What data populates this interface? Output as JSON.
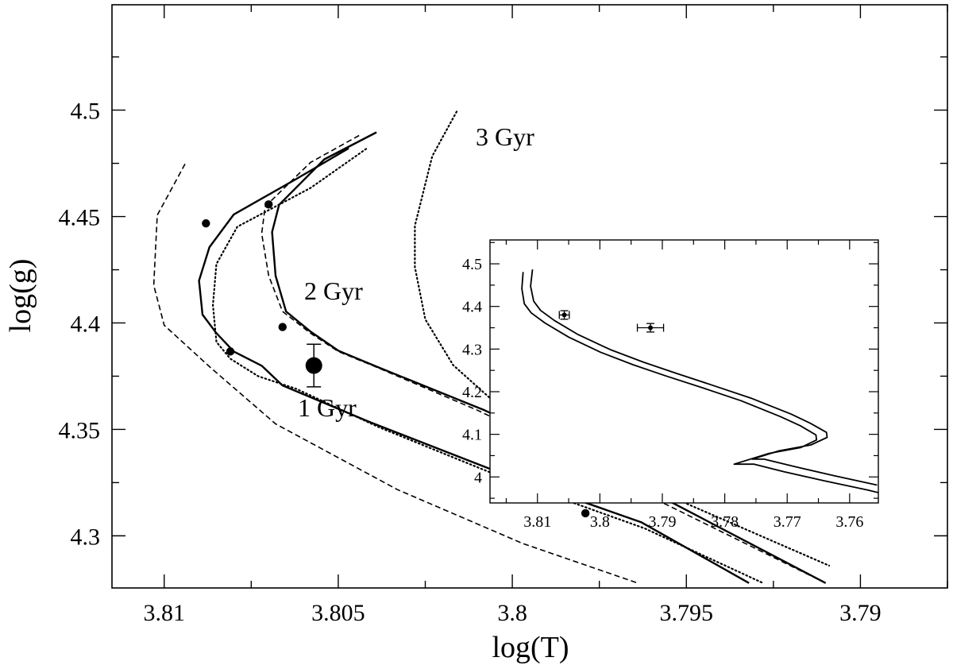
{
  "chart_data": [
    {
      "type": "line",
      "xlabel": "log(T)",
      "ylabel": "log(g)",
      "xlim": [
        3.8115,
        3.7875
      ],
      "ylim": [
        4.5495,
        4.2755
      ],
      "x_reversed": true,
      "y_reversed": true,
      "xticks": [
        3.81,
        3.805,
        3.8,
        3.795,
        3.79
      ],
      "xtick_labels": [
        "3.81",
        "3.805",
        "3.8",
        "3.795",
        "3.79"
      ],
      "yticks": [
        4.3,
        4.35,
        4.4,
        4.45,
        4.5
      ],
      "ytick_labels": [
        "4.3",
        "4.35",
        "4.4",
        "4.45",
        "4.5"
      ],
      "grid": false,
      "series": [
        {
          "style": "solid",
          "x": [
            3.8047,
            3.8062,
            3.808,
            3.8087,
            3.809,
            3.8089,
            3.8085,
            3.808,
            3.8072,
            3.8066,
            3.8041,
            3.8004,
            3.7963,
            3.7932
          ],
          "y": [
            4.4821,
            4.4677,
            4.451,
            4.4356,
            4.4199,
            4.4039,
            4.3952,
            4.3866,
            4.3799,
            4.3706,
            4.3535,
            4.3299,
            4.3064,
            4.2778
          ]
        },
        {
          "style": "solid",
          "x": [
            3.8039,
            3.8054,
            3.8067,
            3.8069,
            3.8068,
            3.8065,
            3.8058,
            3.805,
            3.8039,
            3.8008,
            3.7981,
            3.7957,
            3.791
          ],
          "y": [
            4.4896,
            4.4769,
            4.4555,
            4.4427,
            4.4222,
            4.4054,
            4.396,
            4.387,
            4.3795,
            4.359,
            4.3385,
            4.3181,
            4.2778
          ]
        },
        {
          "style": "dashed",
          "x": [
            3.8094,
            3.8102,
            3.8103,
            3.81,
            3.8087,
            3.8068,
            3.8033,
            3.7997,
            3.7964
          ],
          "y": [
            4.4747,
            4.4506,
            4.4177,
            4.3989,
            4.3795,
            4.3526,
            4.3217,
            4.2964,
            4.2778
          ]
        },
        {
          "style": "dashed",
          "x": [
            3.8044,
            3.8058,
            3.8071,
            3.8072,
            3.807,
            3.8066,
            3.8058,
            3.805,
            3.804,
            3.801,
            3.7983,
            3.7959,
            3.791
          ],
          "y": [
            4.4881,
            4.4754,
            4.4547,
            4.442,
            4.4222,
            4.4054,
            4.3952,
            4.3866,
            4.3799,
            4.359,
            4.3377,
            4.3173,
            4.2778
          ]
        },
        {
          "style": "dotted",
          "x": [
            3.8042,
            3.8058,
            3.8079,
            3.8085,
            3.8086,
            3.8085,
            3.8081,
            3.8073,
            3.8062,
            3.8038,
            3.8002,
            3.7962,
            3.7928
          ],
          "y": [
            4.4818,
            4.4634,
            4.4452,
            4.4277,
            4.4084,
            4.3911,
            4.3832,
            4.375,
            4.369,
            4.3508,
            4.3269,
            4.3035,
            4.2778
          ]
        },
        {
          "style": "dotted",
          "x": [
            3.8016,
            3.8023,
            3.8028,
            3.8028,
            3.8025,
            3.8017,
            3.8006,
            3.7985,
            3.7953,
            3.7909
          ],
          "y": [
            4.4993,
            4.4784,
            4.4457,
            4.4263,
            4.4017,
            4.3802,
            4.3641,
            4.343,
            4.3173,
            4.286
          ]
        }
      ],
      "markers": {
        "x": [
          3.8088,
          3.8081,
          3.807,
          3.8066,
          3.7979,
          3.7972
        ],
        "y": [
          4.4468,
          4.3866,
          4.4557,
          4.3981,
          4.3106,
          4.3236
        ]
      },
      "observations": [
        {
          "x": 3.8057,
          "y": 4.38,
          "yerr": 0.01
        },
        {
          "x": 3.7919,
          "y": 4.35,
          "xerr": 0.0021,
          "yerr": 0.01
        }
      ],
      "annotations": [
        "1 Gyr",
        "2 Gyr",
        "3 Gyr"
      ]
    },
    {
      "type": "line",
      "inset": true,
      "xlim": [
        3.8176,
        3.7554
      ],
      "ylim": [
        4.556,
        3.939
      ],
      "x_reversed": true,
      "y_reversed": true,
      "xticks": [
        3.81,
        3.8,
        3.79,
        3.78,
        3.77,
        3.76
      ],
      "xtick_labels": [
        "3.81",
        "3.8",
        "3.79",
        "3.78",
        "3.77",
        "3.76"
      ],
      "yticks": [
        4.0,
        4.1,
        4.2,
        4.3,
        4.4,
        4.5
      ],
      "ytick_labels": [
        "4",
        "4.1",
        "4.2",
        "4.3",
        "4.4",
        "4.5"
      ],
      "grid": false,
      "series": [
        {
          "style": "solid",
          "x": [
            3.8123,
            3.8125,
            3.8121,
            3.811,
            3.8088,
            3.805,
            3.7999,
            3.7947,
            3.7896,
            3.7834,
            3.7774,
            3.7711,
            3.7679,
            3.7654,
            3.7653,
            3.7678,
            3.7729,
            3.7785,
            3.7753,
            3.7705,
            3.764,
            3.7571,
            3.7554
          ],
          "y": [
            4.4809,
            4.4417,
            4.4064,
            4.3848,
            4.3613,
            4.328,
            4.2927,
            4.2633,
            4.2378,
            4.2084,
            4.1789,
            4.1417,
            4.1201,
            4.0986,
            4.0868,
            4.0692,
            4.0554,
            4.03,
            4.03,
            4.0123,
            3.9907,
            3.9692,
            3.9633
          ]
        },
        {
          "style": "solid",
          "x": [
            3.8108,
            3.8111,
            3.8106,
            3.8095,
            3.8073,
            3.8035,
            3.7983,
            3.793,
            3.7879,
            3.7818,
            3.7758,
            3.7694,
            3.7663,
            3.7637,
            3.7636,
            3.7662,
            3.7713,
            3.7756,
            3.7737,
            3.7688,
            3.7624,
            3.7556
          ],
          "y": [
            4.4868,
            4.4476,
            4.4123,
            4.3907,
            4.3672,
            4.3339,
            4.2986,
            4.2692,
            4.2437,
            4.2143,
            4.1848,
            4.1476,
            4.126,
            4.1045,
            4.0927,
            4.0751,
            4.0613,
            4.0417,
            4.0417,
            4.0241,
            4.0025,
            3.981
          ]
        }
      ],
      "observations": [
        {
          "x": 3.8057,
          "y": 4.38,
          "xerr": 0.0008,
          "yerr": 0.01
        },
        {
          "x": 3.7919,
          "y": 4.35,
          "xerr": 0.0021,
          "yerr": 0.01
        }
      ]
    }
  ]
}
